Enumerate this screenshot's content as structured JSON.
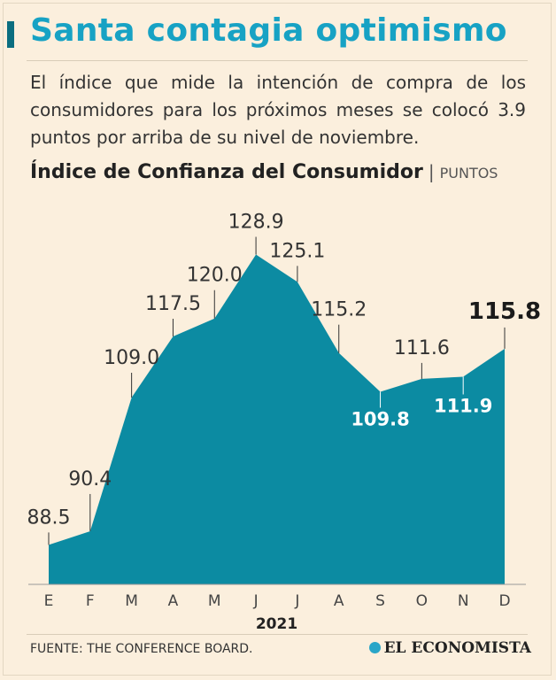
{
  "chart_data": {
    "type": "area",
    "title": "Santa contagia optimismo",
    "subtitle": "El índice que mide la intención de compra de los consumidores para los próximos meses se colocó 3.9 puntos por arriba de su nivel de noviembre.",
    "chart_title": "Índice de Confianza del Consumidor",
    "unit": "PUNTOS",
    "x_label": "2021",
    "categories": [
      "E",
      "F",
      "M",
      "A",
      "M",
      "J",
      "J",
      "A",
      "S",
      "O",
      "N",
      "D"
    ],
    "values": [
      88.5,
      90.4,
      109.0,
      117.5,
      120.0,
      128.9,
      125.1,
      115.2,
      109.8,
      111.6,
      111.9,
      115.8
    ],
    "value_labels": [
      "88.5",
      "90.4",
      "109.0",
      "117.5",
      "120.0",
      "128.9",
      "125.1",
      "115.2",
      "109.8",
      "111.6",
      "111.9",
      "115.8"
    ],
    "color": "#0c8ba2",
    "ylim": [
      83,
      135
    ],
    "source": "FUENTE: THE CONFERENCE BOARD.",
    "brand": "EL ECONOMISTA"
  }
}
